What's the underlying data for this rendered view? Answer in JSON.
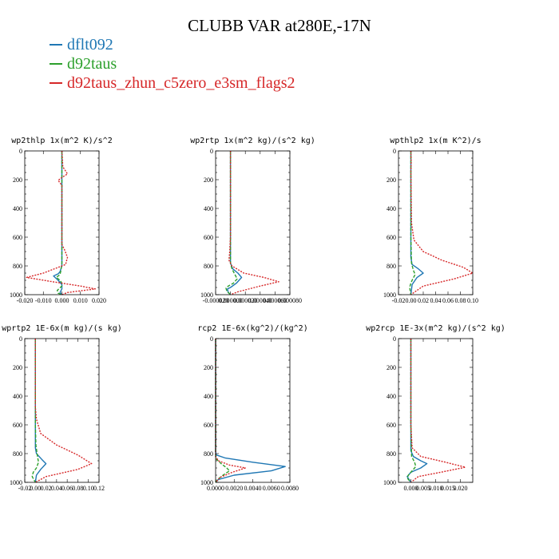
{
  "title": "CLUBB VAR at280E,-17N",
  "legend": [
    {
      "name": "dflt092",
      "color": "#1f77b4",
      "dash": "solid"
    },
    {
      "name": "d92taus",
      "color": "#2ca02c",
      "dash": "dashed"
    },
    {
      "name": "d92taus_zhun_c5zero_e3sm_flags2",
      "color": "#d62728",
      "dash": "dotted"
    }
  ],
  "chart_data": [
    {
      "type": "line",
      "title": "wp2thlp  1x(m^2 K)/s^2",
      "xlim": [
        -0.02,
        0.02
      ],
      "ylim": [
        1000,
        0
      ],
      "xticks": [
        -0.02,
        -0.01,
        0,
        0.01,
        0.02
      ],
      "xtick_labels": [
        "-0.020",
        "-0.010",
        "0.000",
        "0.010",
        "0.020"
      ],
      "yticks": [
        0,
        200,
        400,
        600,
        800,
        1000
      ],
      "ytick_labels": [
        "0",
        "200",
        "400",
        "600",
        "800",
        "1000"
      ],
      "series": [
        {
          "name": "dflt092",
          "x": [
            0,
            0,
            0,
            -0.001,
            -0.002,
            -0.0045,
            -0.002,
            0,
            0,
            -0.001,
            0
          ],
          "y": [
            0,
            600,
            800,
            840,
            855,
            870,
            900,
            930,
            960,
            985,
            1000
          ]
        },
        {
          "name": "d92taus",
          "x": [
            0,
            0,
            0,
            -0.0005,
            -0.001,
            -0.003,
            -0.001,
            0,
            0,
            -0.0025,
            -0.002,
            0
          ],
          "y": [
            0,
            600,
            780,
            830,
            860,
            880,
            900,
            920,
            940,
            970,
            990,
            1000
          ]
        },
        {
          "name": "d92taus_zhun_c5zero_e3sm_flags2",
          "x": [
            0,
            0.0005,
            0.003,
            0,
            -0.002,
            0,
            0,
            0,
            0.0015,
            0.003,
            0.002,
            -0.01,
            -0.019,
            -0.005,
            0.01,
            0.018,
            0.003,
            0
          ],
          "y": [
            0,
            110,
            160,
            185,
            205,
            240,
            500,
            650,
            690,
            740,
            790,
            850,
            880,
            910,
            940,
            960,
            985,
            1000
          ]
        }
      ]
    },
    {
      "type": "line",
      "title": "wp2rtp  1x(m^2 kg)/(s^2 kg)",
      "xlim": [
        -2e-05,
        8e-05
      ],
      "ylim": [
        1000,
        0
      ],
      "xticks": [
        -2e-05,
        0,
        2e-05,
        4e-05,
        6e-05,
        8e-05
      ],
      "xtick_labels": [
        "-0.000020",
        "0.000000",
        "0.000020",
        "0.000040",
        "0.000060",
        "0.000080"
      ],
      "yticks": [
        0,
        200,
        400,
        600,
        800,
        1000
      ],
      "ytick_labels": [
        "0",
        "200",
        "400",
        "600",
        "800",
        "1000"
      ],
      "series": [
        {
          "name": "dflt092",
          "x": [
            0,
            0,
            0,
            3e-06,
            1e-05,
            1.5e-05,
            8e-06,
            0,
            -4e-06,
            -3e-06,
            0
          ],
          "y": [
            0,
            600,
            780,
            820,
            850,
            880,
            920,
            950,
            960,
            985,
            1000
          ]
        },
        {
          "name": "d92taus",
          "x": [
            0,
            0,
            0,
            2e-06,
            6e-06,
            9e-06,
            4e-06,
            -3e-06,
            -6e-06,
            -5e-06,
            0
          ],
          "y": [
            0,
            600,
            780,
            820,
            860,
            890,
            920,
            940,
            955,
            975,
            1000
          ]
        },
        {
          "name": "d92taus_zhun_c5zero_e3sm_flags2",
          "x": [
            0,
            0,
            -1e-06,
            -2e-06,
            2e-06,
            1.8e-05,
            4.5e-05,
            6.5e-05,
            4e-05,
            1e-05,
            0
          ],
          "y": [
            0,
            600,
            700,
            760,
            800,
            850,
            880,
            910,
            940,
            980,
            1000
          ]
        }
      ]
    },
    {
      "type": "line",
      "title": "wpthlp2  1x(m K^2)/s",
      "xlim": [
        -0.02,
        0.1
      ],
      "ylim": [
        1000,
        0
      ],
      "xticks": [
        -0.02,
        0,
        0.02,
        0.04,
        0.06,
        0.08,
        0.1
      ],
      "xtick_labels": [
        "-0.02",
        "0.00",
        "0.02",
        "0.04",
        "0.06",
        "0.08",
        "0.10"
      ],
      "yticks": [
        0,
        200,
        400,
        600,
        800,
        1000
      ],
      "ytick_labels": [
        "0",
        "200",
        "400",
        "600",
        "800",
        "1000"
      ],
      "series": [
        {
          "name": "dflt092",
          "x": [
            0,
            0,
            0,
            0.002,
            0.012,
            0.02,
            0.01,
            0.002,
            0
          ],
          "y": [
            0,
            600,
            740,
            790,
            820,
            850,
            880,
            930,
            1000
          ]
        },
        {
          "name": "d92taus",
          "x": [
            0,
            0,
            0.001,
            0.004,
            0.007,
            0.003,
            0,
            -0.002,
            0
          ],
          "y": [
            0,
            600,
            780,
            830,
            860,
            890,
            920,
            950,
            1000
          ]
        },
        {
          "name": "d92taus_zhun_c5zero_e3sm_flags2",
          "x": [
            0,
            0.0005,
            0,
            0.001,
            0.005,
            0.02,
            0.05,
            0.085,
            0.1,
            0.07,
            0.02,
            0
          ],
          "y": [
            0,
            80,
            140,
            500,
            620,
            700,
            760,
            810,
            850,
            890,
            940,
            1000
          ]
        }
      ]
    },
    {
      "type": "line",
      "title": "wprtp2  1E-6x(m kg)/(s kg)",
      "xlim": [
        -0.02,
        0.12
      ],
      "ylim": [
        1000,
        0
      ],
      "xticks": [
        -0.02,
        0,
        0.02,
        0.04,
        0.06,
        0.08,
        0.1,
        0.12
      ],
      "xtick_labels": [
        "-0.02",
        "0.00",
        "0.02",
        "0.04",
        "0.06",
        "0.08",
        "0.10",
        "0.12"
      ],
      "yticks": [
        0,
        200,
        400,
        600,
        800,
        1000
      ],
      "ytick_labels": [
        "0",
        "200",
        "400",
        "600",
        "800",
        "1000"
      ],
      "series": [
        {
          "name": "dflt092",
          "x": [
            0,
            0,
            0,
            0.002,
            0.012,
            0.02,
            0.01,
            0.002,
            0
          ],
          "y": [
            0,
            600,
            760,
            800,
            840,
            870,
            910,
            950,
            1000
          ]
        },
        {
          "name": "d92taus",
          "x": [
            0,
            0,
            0.001,
            0.004,
            0.006,
            0.002,
            -0.004,
            -0.006,
            0
          ],
          "y": [
            0,
            600,
            740,
            820,
            860,
            900,
            930,
            960,
            1000
          ]
        },
        {
          "name": "d92taus_zhun_c5zero_e3sm_flags2",
          "x": [
            0,
            0,
            0.002,
            0.01,
            0.04,
            0.08,
            0.106,
            0.08,
            0.02,
            0
          ],
          "y": [
            0,
            480,
            560,
            660,
            740,
            810,
            870,
            910,
            960,
            1000
          ]
        }
      ]
    },
    {
      "type": "line",
      "title": "rcp2  1E-6x(kg^2)/(kg^2)",
      "xlim": [
        0,
        0.008
      ],
      "ylim": [
        1000,
        0
      ],
      "xticks": [
        0,
        0.002,
        0.004,
        0.006,
        0.008
      ],
      "xtick_labels": [
        "0.0000",
        "0.0020",
        "0.0040",
        "0.0060",
        "0.0080"
      ],
      "yticks": [
        0,
        200,
        400,
        600,
        800,
        1000
      ],
      "ytick_labels": [
        "0",
        "200",
        "400",
        "600",
        "800",
        "1000"
      ],
      "series": [
        {
          "name": "dflt092",
          "x": [
            0,
            0,
            0.0001,
            0.001,
            0.004,
            0.0075,
            0.006,
            0.002,
            0.0003,
            0
          ],
          "y": [
            0,
            790,
            810,
            830,
            860,
            890,
            920,
            950,
            980,
            1000
          ]
        },
        {
          "name": "d92taus",
          "x": [
            0,
            0,
            0.0001,
            0.0006,
            0.0012,
            0.0015,
            0.0008,
            0.0002,
            0
          ],
          "y": [
            0,
            810,
            840,
            870,
            900,
            920,
            950,
            980,
            1000
          ]
        },
        {
          "name": "d92taus_zhun_c5zero_e3sm_flags2",
          "x": [
            0,
            0,
            0.0003,
            0.0015,
            0.0032,
            0.0018,
            0.0005,
            0
          ],
          "y": [
            0,
            820,
            850,
            880,
            900,
            930,
            965,
            1000
          ]
        }
      ]
    },
    {
      "type": "line",
      "title": "wp2rcp  1E-3x(m^2 kg)/(s^2 kg)",
      "xlim": [
        -0.005,
        0.025
      ],
      "ylim": [
        1000,
        0
      ],
      "xticks": [
        0,
        0.005,
        0.01,
        0.015,
        0.02
      ],
      "xtick_labels": [
        "0.000",
        "0.005",
        "0.010",
        "0.015",
        "0.020"
      ],
      "yticks": [
        0,
        200,
        400,
        600,
        800,
        1000
      ],
      "ytick_labels": [
        "0",
        "200",
        "400",
        "600",
        "800",
        "1000"
      ],
      "series": [
        {
          "name": "dflt092",
          "x": [
            0,
            0,
            0,
            0.001,
            0.004,
            0.0065,
            0.004,
            0,
            -0.0015,
            0
          ],
          "y": [
            0,
            600,
            780,
            820,
            850,
            870,
            900,
            930,
            960,
            1000
          ]
        },
        {
          "name": "d92taus",
          "x": [
            0,
            0,
            0.0003,
            0.0015,
            0.002,
            0.0005,
            -0.001,
            -0.0015,
            0
          ],
          "y": [
            0,
            600,
            820,
            860,
            890,
            920,
            950,
            970,
            1000
          ]
        },
        {
          "name": "d92taus_zhun_c5zero_e3sm_flags2",
          "x": [
            0,
            0,
            0.0005,
            0.004,
            0.014,
            0.022,
            0.012,
            0.003,
            0
          ],
          "y": [
            0,
            600,
            760,
            820,
            860,
            895,
            930,
            960,
            1000
          ]
        }
      ]
    }
  ]
}
